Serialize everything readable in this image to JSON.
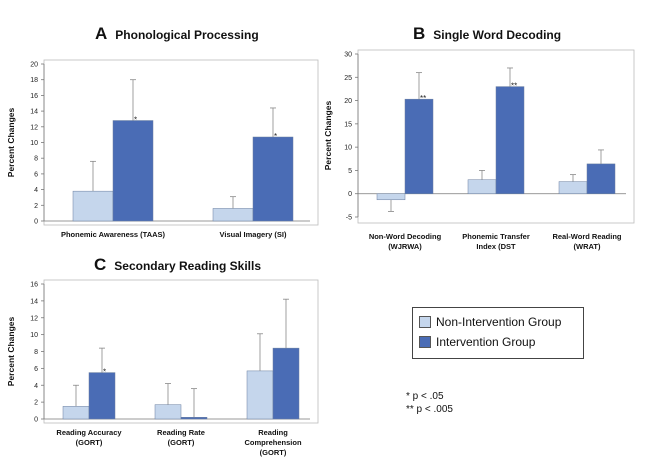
{
  "colors": {
    "non": "#c5d6ec",
    "int": "#4a6cb5",
    "err": "#888888",
    "axis": "#777777"
  },
  "legend": {
    "non_label": "Non-Intervention Group",
    "int_label": "Intervention Group"
  },
  "significance": {
    "line1": "* p < .05",
    "line2": "** p < .005"
  },
  "chart_data": [
    {
      "id": "A",
      "letter": "A",
      "title": "Phonological Processing",
      "type": "bar",
      "ylabel": "Percent Changes",
      "ylim": [
        0,
        20
      ],
      "yticks": [
        0,
        2,
        4,
        6,
        8,
        10,
        12,
        14,
        16,
        18,
        20
      ],
      "categories": [
        [
          "Phonemic Awareness (TAAS)"
        ],
        [
          "Visual Imagery (SI)"
        ]
      ],
      "series": [
        {
          "name": "Non-Intervention Group",
          "values": [
            3.8,
            1.6
          ],
          "errors": [
            3.8,
            1.5
          ]
        },
        {
          "name": "Intervention Group",
          "values": [
            12.8,
            10.7
          ],
          "errors": [
            5.2,
            3.7
          ]
        }
      ],
      "annotations": [
        "*",
        "*"
      ],
      "grid": false
    },
    {
      "id": "B",
      "letter": "B",
      "title": "Single Word Decoding",
      "type": "bar",
      "ylabel": "Percent Changes",
      "ylim": [
        -5,
        30
      ],
      "yticks": [
        -5,
        0,
        5,
        10,
        15,
        20,
        25,
        30
      ],
      "categories": [
        [
          "Non-Word Decoding",
          "(WJRWA)"
        ],
        [
          "Phonemic Transfer",
          "Index (DST"
        ],
        [
          "Real-Word Reading",
          "(WRAT)"
        ]
      ],
      "series": [
        {
          "name": "Non-Intervention Group",
          "values": [
            -1.3,
            3.0,
            2.6
          ],
          "errors": [
            2.5,
            2.0,
            1.5
          ]
        },
        {
          "name": "Intervention Group",
          "values": [
            20.3,
            23.0,
            6.4
          ],
          "errors": [
            5.7,
            4.0,
            3.0
          ]
        }
      ],
      "annotations": [
        "**",
        "**",
        ""
      ],
      "grid": false
    },
    {
      "id": "C",
      "letter": "C",
      "title": "Secondary Reading Skills",
      "type": "bar",
      "ylabel": "Percent Changes",
      "ylim": [
        0,
        16
      ],
      "yticks": [
        0,
        2,
        4,
        6,
        8,
        10,
        12,
        14,
        16
      ],
      "categories": [
        [
          "Reading Accuracy",
          "(GORT)"
        ],
        [
          "Reading Rate",
          "(GORT)"
        ],
        [
          "Reading",
          "Comprehension",
          "(GORT)"
        ]
      ],
      "series": [
        {
          "name": "Non-Intervention Group",
          "values": [
            1.5,
            1.7,
            5.7
          ],
          "errors": [
            2.5,
            2.5,
            4.4
          ]
        },
        {
          "name": "Intervention Group",
          "values": [
            5.5,
            0.2,
            8.4
          ],
          "errors": [
            2.9,
            3.4,
            5.8
          ]
        }
      ],
      "annotations": [
        "*",
        "",
        ""
      ],
      "grid": false
    }
  ]
}
